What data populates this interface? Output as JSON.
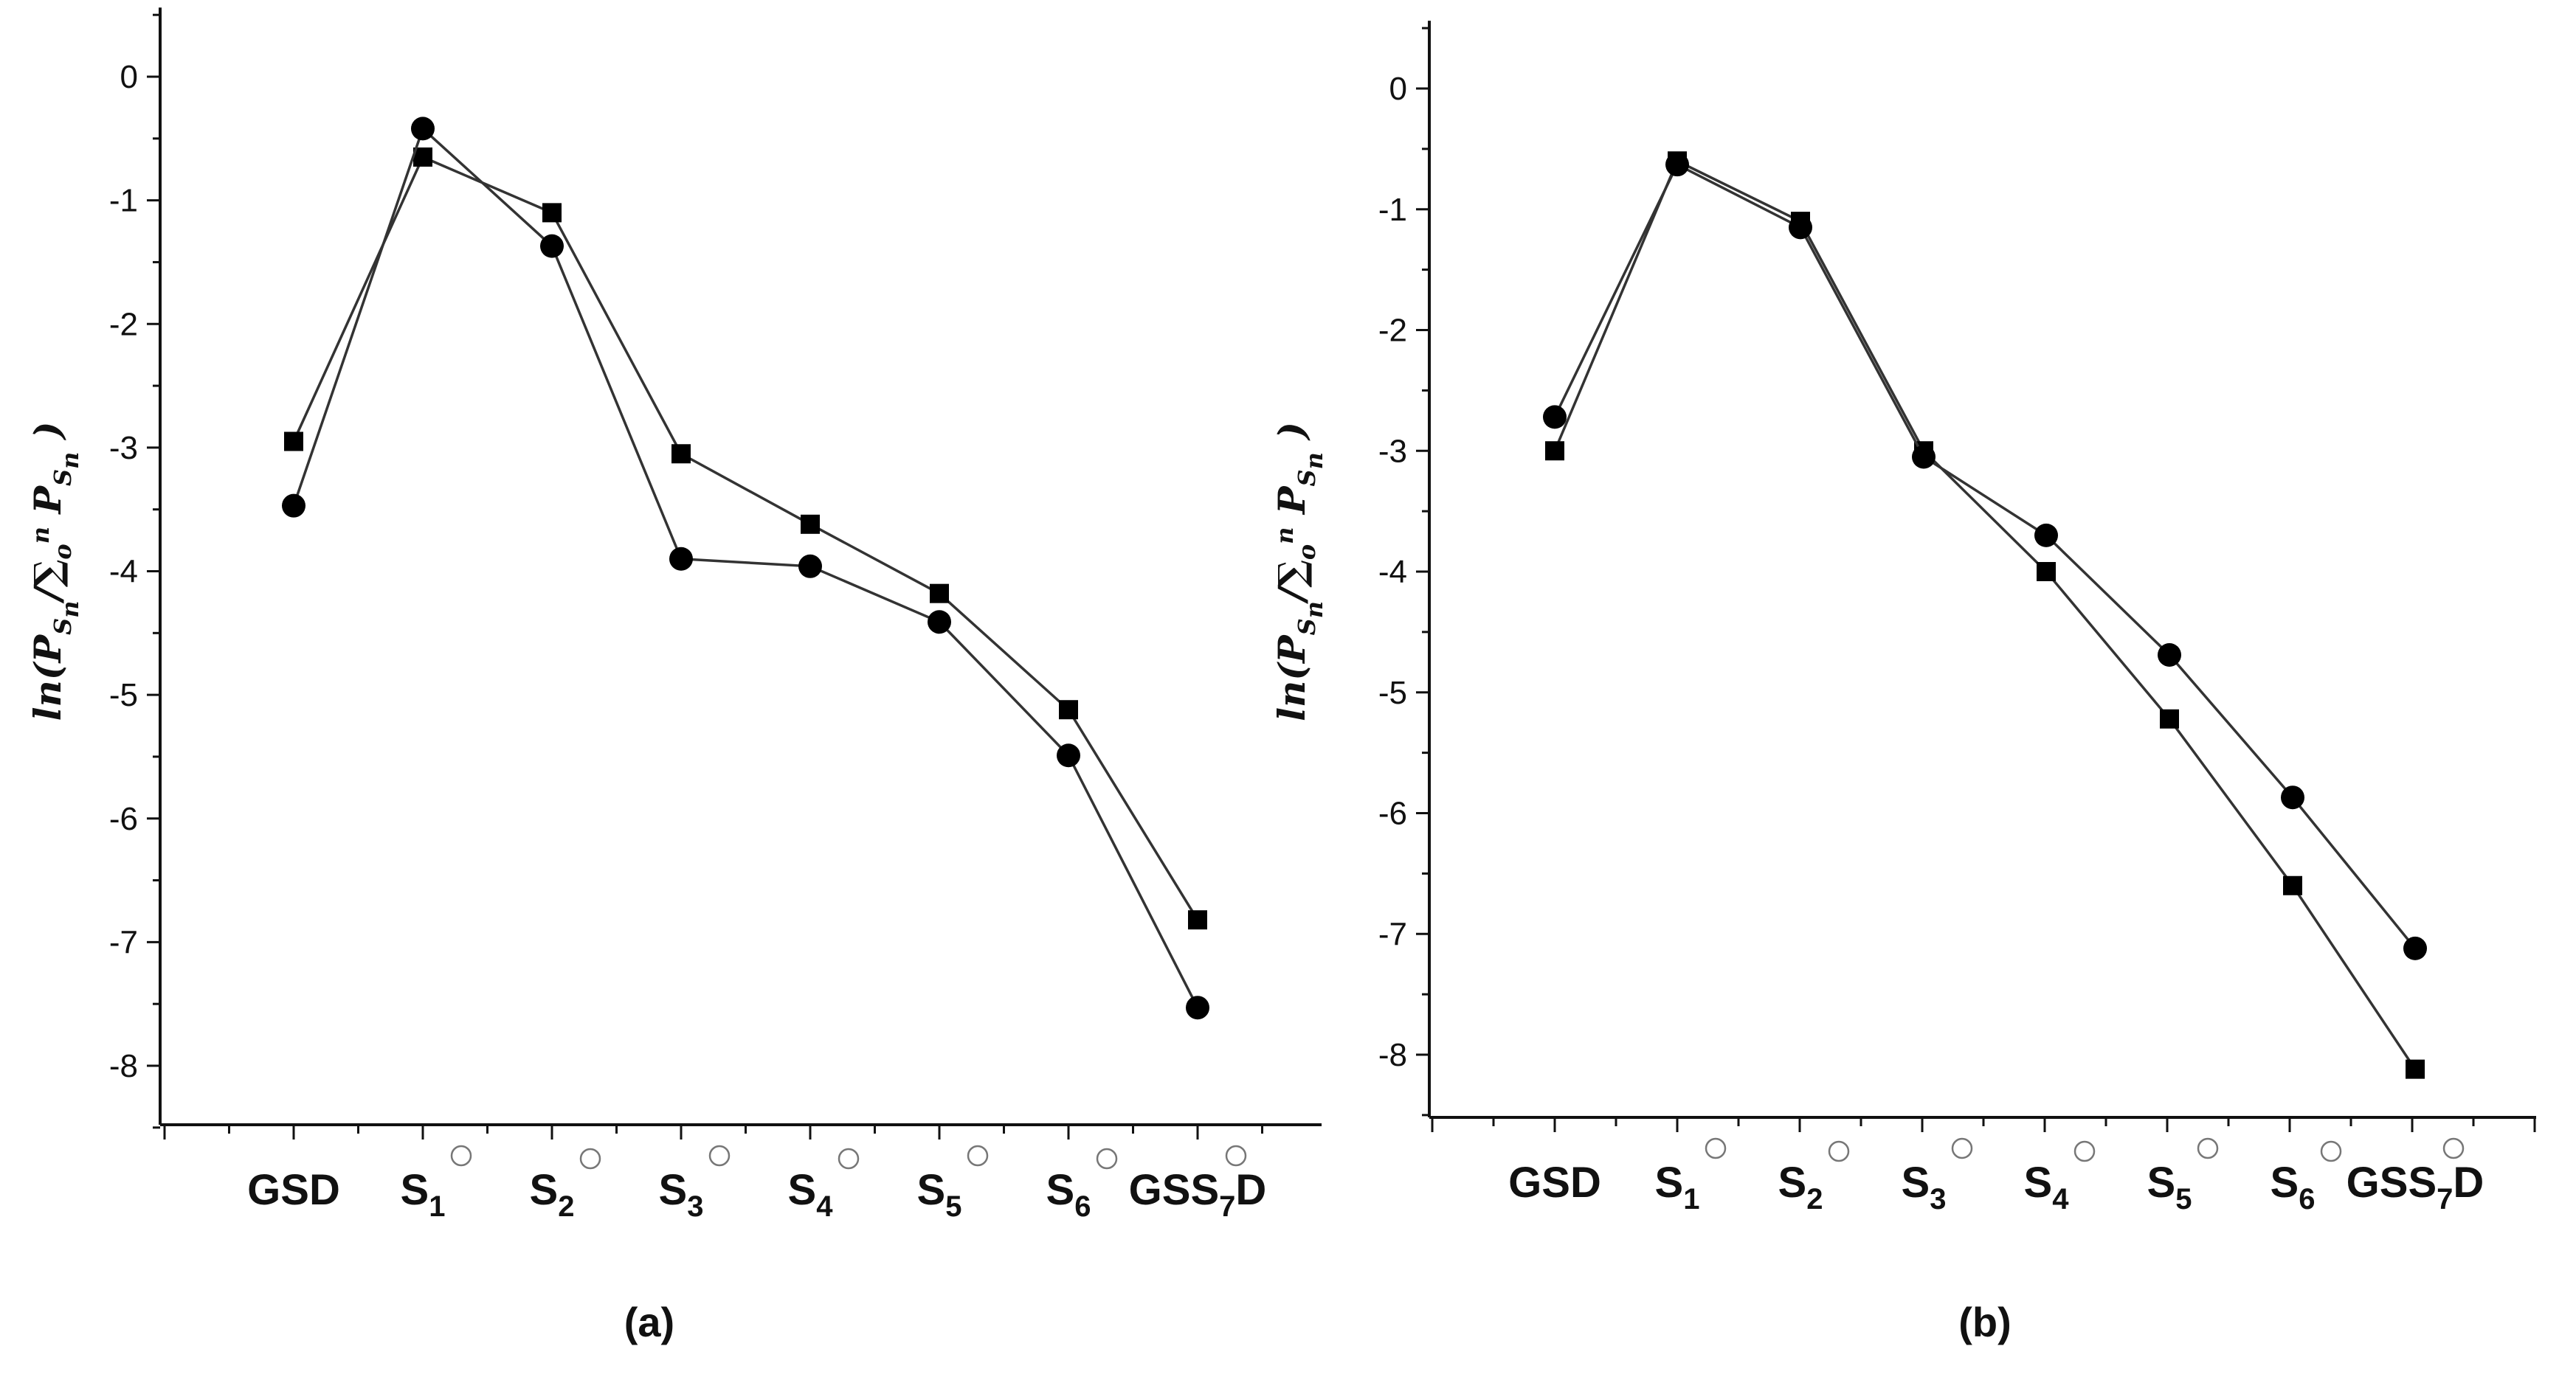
{
  "chart_data": [
    {
      "type": "line",
      "panel_label": "(a)",
      "ylabel": "ln(P_{S_n}/∑_o^n P_{S_n})",
      "ylim": [
        -8.5,
        0.5
      ],
      "yticks": [
        0,
        -1,
        -2,
        -3,
        -4,
        -5,
        -6,
        -7,
        -8
      ],
      "categories": [
        {
          "base": "GSD",
          "sub": ""
        },
        {
          "base": "S",
          "sub": "1"
        },
        {
          "base": "S",
          "sub": "2"
        },
        {
          "base": "S",
          "sub": "3"
        },
        {
          "base": "S",
          "sub": "4"
        },
        {
          "base": "S",
          "sub": "5"
        },
        {
          "base": "S",
          "sub": "6"
        },
        {
          "base": "GSS",
          "sub": "7",
          "tail": "D"
        }
      ],
      "series": [
        {
          "name": "squares",
          "marker": "square",
          "values": [
            -2.95,
            -0.65,
            -1.1,
            -3.05,
            -3.62,
            -4.18,
            -5.12,
            -6.82
          ]
        },
        {
          "name": "circles",
          "marker": "circle",
          "values": [
            -3.47,
            -0.42,
            -1.37,
            -3.9,
            -3.96,
            -4.41,
            -5.49,
            -7.53
          ]
        }
      ]
    },
    {
      "type": "line",
      "panel_label": "(b)",
      "ylabel": "ln(P_{S_n}/∑_o^n P_{S_n})",
      "ylim": [
        -8.5,
        0.5
      ],
      "yticks": [
        0,
        -1,
        -2,
        -3,
        -4,
        -5,
        -6,
        -7,
        -8
      ],
      "categories": [
        {
          "base": "GSD",
          "sub": ""
        },
        {
          "base": "S",
          "sub": "1"
        },
        {
          "base": "S",
          "sub": "2"
        },
        {
          "base": "S",
          "sub": "3"
        },
        {
          "base": "S",
          "sub": "4"
        },
        {
          "base": "S",
          "sub": "5"
        },
        {
          "base": "S",
          "sub": "6"
        },
        {
          "base": "GSS",
          "sub": "7",
          "tail": "D"
        }
      ],
      "series": [
        {
          "name": "squares",
          "marker": "square",
          "values": [
            -3.0,
            -0.6,
            -1.1,
            -3.0,
            -4.0,
            -5.22,
            -6.6,
            -8.12
          ]
        },
        {
          "name": "circles",
          "marker": "circle",
          "values": [
            -2.72,
            -0.63,
            -1.15,
            -3.05,
            -3.7,
            -4.69,
            -5.87,
            -7.12
          ]
        }
      ]
    }
  ]
}
